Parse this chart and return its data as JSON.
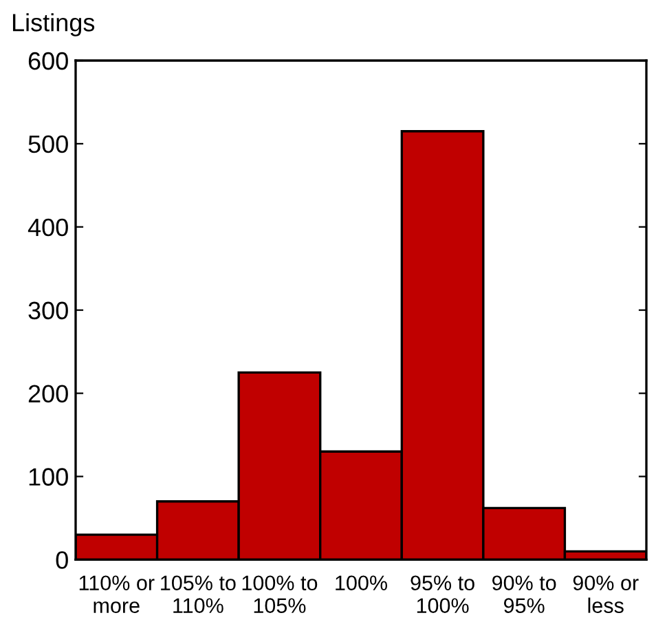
{
  "chart_data": {
    "type": "bar",
    "ylabel": "Listings",
    "categories": [
      "110% or\nmore",
      "105% to\n110%",
      "100% to\n105%",
      "100%",
      "95% to\n100%",
      "90% to\n95%",
      "90% or\nless"
    ],
    "values": [
      30,
      70,
      225,
      130,
      515,
      62,
      10
    ],
    "color": "#c00000",
    "ylim": [
      0,
      600
    ],
    "yticks": [
      0,
      100,
      200,
      300,
      400,
      500,
      600
    ],
    "grid": false
  }
}
